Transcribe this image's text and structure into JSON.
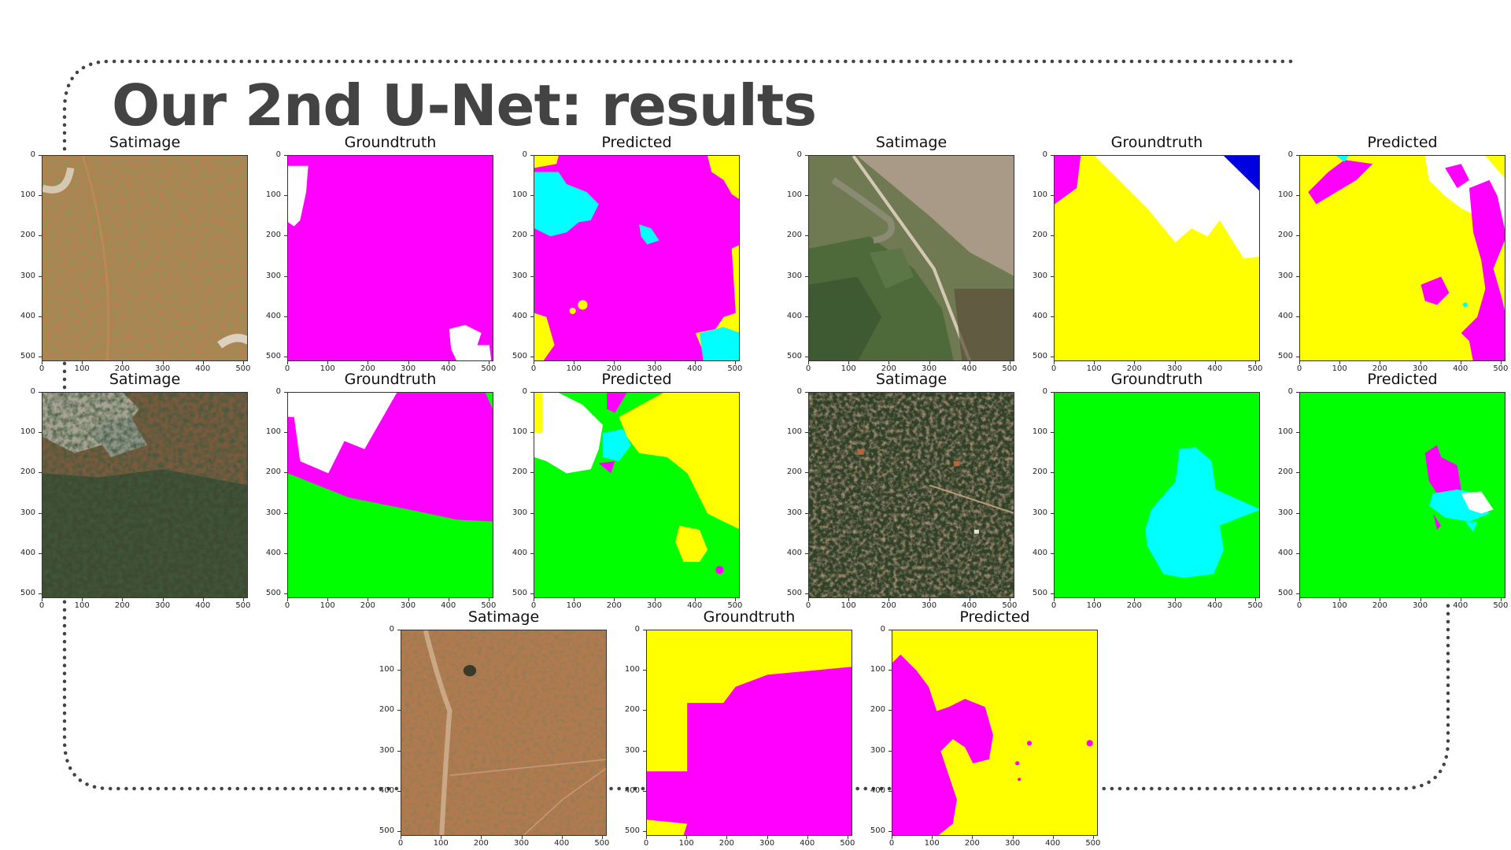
{
  "slide": {
    "title": "Our 2nd U-Net: results"
  },
  "axis": {
    "ticks": [
      "0",
      "100",
      "200",
      "300",
      "400",
      "500"
    ],
    "range": [
      0,
      512
    ]
  },
  "colors": {
    "magenta": "#ff00ff",
    "yellow": "#ffff00",
    "cyan": "#00ffff",
    "green": "#00ff00",
    "blue": "#0000e0",
    "white": "#ffffff",
    "frame_dots": "#444444",
    "title": "#434343"
  },
  "panels": [
    {
      "id": "r1-1",
      "title": "Satimage",
      "kind": "satellite",
      "scene": "dry-scrub"
    },
    {
      "id": "r1-2",
      "title": "Groundtruth",
      "kind": "mask"
    },
    {
      "id": "r1-3",
      "title": "Predicted",
      "kind": "mask"
    },
    {
      "id": "r1-4",
      "title": "Satimage",
      "kind": "satellite",
      "scene": "farmland"
    },
    {
      "id": "r1-5",
      "title": "Groundtruth",
      "kind": "mask"
    },
    {
      "id": "r1-6",
      "title": "Predicted",
      "kind": "mask"
    },
    {
      "id": "r2-1",
      "title": "Satimage",
      "kind": "satellite",
      "scene": "forest-edge"
    },
    {
      "id": "r2-2",
      "title": "Groundtruth",
      "kind": "mask"
    },
    {
      "id": "r2-3",
      "title": "Predicted",
      "kind": "mask"
    },
    {
      "id": "r2-4",
      "title": "Satimage",
      "kind": "satellite",
      "scene": "forest-village"
    },
    {
      "id": "r2-5",
      "title": "Groundtruth",
      "kind": "mask"
    },
    {
      "id": "r2-6",
      "title": "Predicted",
      "kind": "mask"
    },
    {
      "id": "r3-1",
      "title": "Satimage",
      "kind": "satellite",
      "scene": "dry-road"
    },
    {
      "id": "r3-2",
      "title": "Groundtruth",
      "kind": "mask"
    },
    {
      "id": "r3-3",
      "title": "Predicted",
      "kind": "mask"
    }
  ]
}
